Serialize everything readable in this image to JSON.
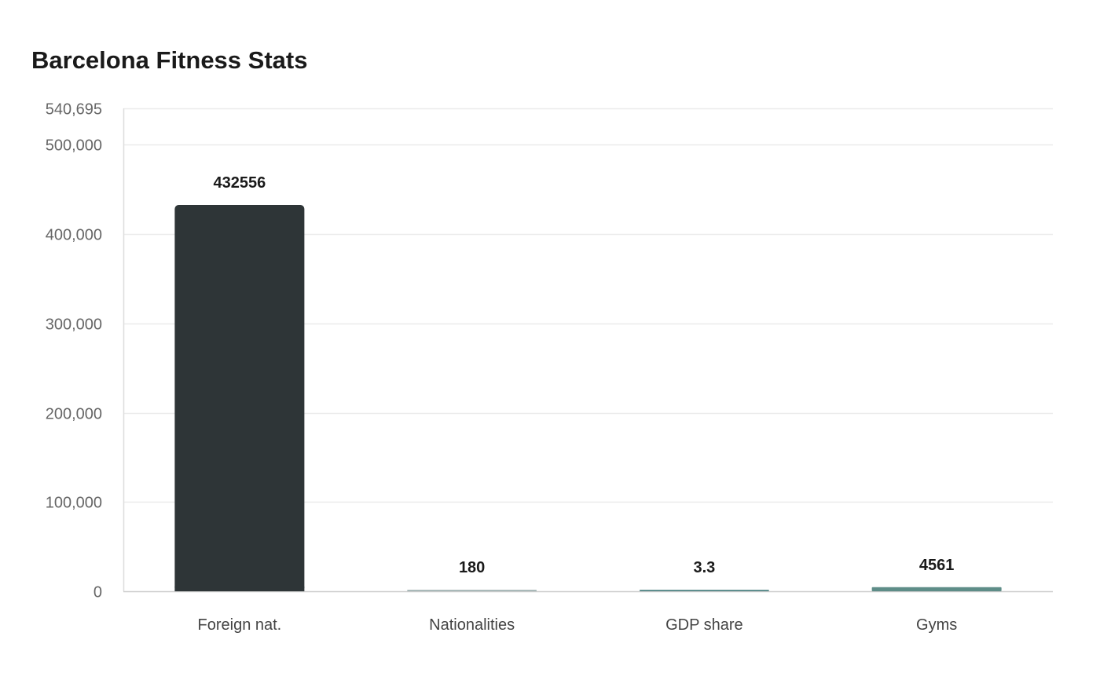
{
  "chart_data": {
    "type": "bar",
    "title": "Barcelona Fitness Stats",
    "xlabel": "",
    "ylabel": "",
    "categories": [
      "Foreign nat.",
      "Nationalities",
      "GDP share",
      "Gyms"
    ],
    "values": [
      432556,
      180,
      3.3,
      4561
    ],
    "value_labels": [
      "432556",
      "180",
      "3.3",
      "4561"
    ],
    "bar_colors": [
      "#2e3537",
      "#a9b9b9",
      "#5f8f8f",
      "#5e8d88"
    ],
    "ylim": [
      0,
      540695
    ],
    "yticks": [
      0,
      100000,
      200000,
      300000,
      400000,
      500000,
      540695
    ],
    "ytick_labels": [
      "0",
      "100,000",
      "200,000",
      "300,000",
      "400,000",
      "500,000",
      "540,695"
    ],
    "grid": true,
    "legend": "none"
  }
}
